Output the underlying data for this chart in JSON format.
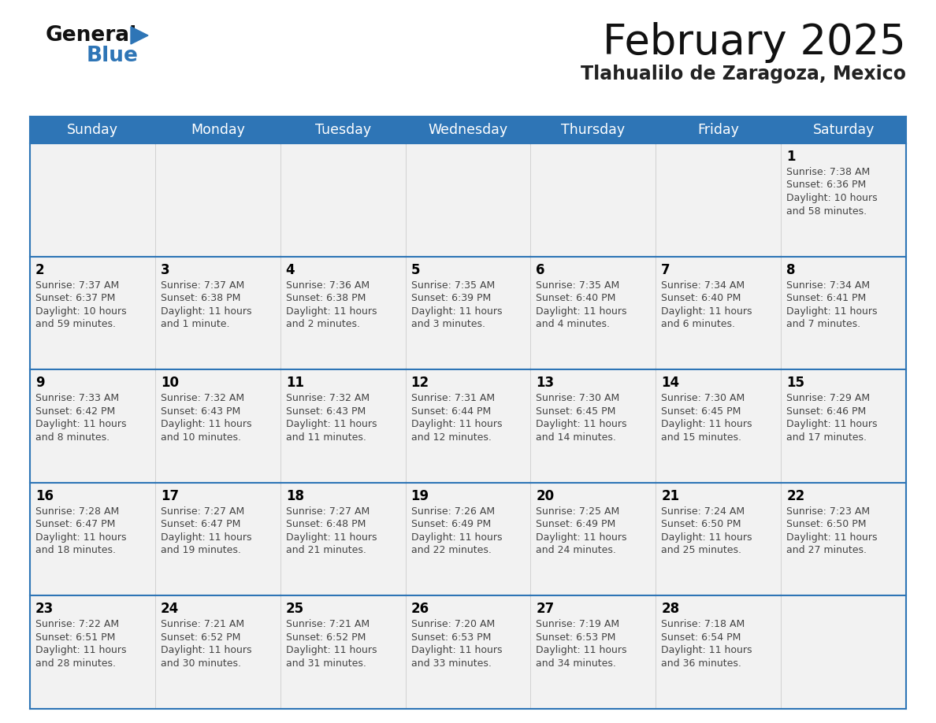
{
  "title": "February 2025",
  "subtitle": "Tlahualilo de Zaragoza, Mexico",
  "header_bg": "#2e75b6",
  "header_text": "#ffffff",
  "day_names": [
    "Sunday",
    "Monday",
    "Tuesday",
    "Wednesday",
    "Thursday",
    "Friday",
    "Saturday"
  ],
  "cell_bg": "#f2f2f2",
  "cell_border_color": "#2e75b6",
  "cell_inner_border": "#cccccc",
  "day_num_color": "#000000",
  "info_color": "#444444",
  "calendar": [
    [
      {
        "day": null,
        "sunrise": null,
        "sunset": null,
        "daylight": ""
      },
      {
        "day": null,
        "sunrise": null,
        "sunset": null,
        "daylight": ""
      },
      {
        "day": null,
        "sunrise": null,
        "sunset": null,
        "daylight": ""
      },
      {
        "day": null,
        "sunrise": null,
        "sunset": null,
        "daylight": ""
      },
      {
        "day": null,
        "sunrise": null,
        "sunset": null,
        "daylight": ""
      },
      {
        "day": null,
        "sunrise": null,
        "sunset": null,
        "daylight": ""
      },
      {
        "day": 1,
        "sunrise": "7:38 AM",
        "sunset": "6:36 PM",
        "daylight": "10 hours and 58 minutes."
      }
    ],
    [
      {
        "day": 2,
        "sunrise": "7:37 AM",
        "sunset": "6:37 PM",
        "daylight": "10 hours and 59 minutes."
      },
      {
        "day": 3,
        "sunrise": "7:37 AM",
        "sunset": "6:38 PM",
        "daylight": "11 hours and 1 minute."
      },
      {
        "day": 4,
        "sunrise": "7:36 AM",
        "sunset": "6:38 PM",
        "daylight": "11 hours and 2 minutes."
      },
      {
        "day": 5,
        "sunrise": "7:35 AM",
        "sunset": "6:39 PM",
        "daylight": "11 hours and 3 minutes."
      },
      {
        "day": 6,
        "sunrise": "7:35 AM",
        "sunset": "6:40 PM",
        "daylight": "11 hours and 4 minutes."
      },
      {
        "day": 7,
        "sunrise": "7:34 AM",
        "sunset": "6:40 PM",
        "daylight": "11 hours and 6 minutes."
      },
      {
        "day": 8,
        "sunrise": "7:34 AM",
        "sunset": "6:41 PM",
        "daylight": "11 hours and 7 minutes."
      }
    ],
    [
      {
        "day": 9,
        "sunrise": "7:33 AM",
        "sunset": "6:42 PM",
        "daylight": "11 hours and 8 minutes."
      },
      {
        "day": 10,
        "sunrise": "7:32 AM",
        "sunset": "6:43 PM",
        "daylight": "11 hours and 10 minutes."
      },
      {
        "day": 11,
        "sunrise": "7:32 AM",
        "sunset": "6:43 PM",
        "daylight": "11 hours and 11 minutes."
      },
      {
        "day": 12,
        "sunrise": "7:31 AM",
        "sunset": "6:44 PM",
        "daylight": "11 hours and 12 minutes."
      },
      {
        "day": 13,
        "sunrise": "7:30 AM",
        "sunset": "6:45 PM",
        "daylight": "11 hours and 14 minutes."
      },
      {
        "day": 14,
        "sunrise": "7:30 AM",
        "sunset": "6:45 PM",
        "daylight": "11 hours and 15 minutes."
      },
      {
        "day": 15,
        "sunrise": "7:29 AM",
        "sunset": "6:46 PM",
        "daylight": "11 hours and 17 minutes."
      }
    ],
    [
      {
        "day": 16,
        "sunrise": "7:28 AM",
        "sunset": "6:47 PM",
        "daylight": "11 hours and 18 minutes."
      },
      {
        "day": 17,
        "sunrise": "7:27 AM",
        "sunset": "6:47 PM",
        "daylight": "11 hours and 19 minutes."
      },
      {
        "day": 18,
        "sunrise": "7:27 AM",
        "sunset": "6:48 PM",
        "daylight": "11 hours and 21 minutes."
      },
      {
        "day": 19,
        "sunrise": "7:26 AM",
        "sunset": "6:49 PM",
        "daylight": "11 hours and 22 minutes."
      },
      {
        "day": 20,
        "sunrise": "7:25 AM",
        "sunset": "6:49 PM",
        "daylight": "11 hours and 24 minutes."
      },
      {
        "day": 21,
        "sunrise": "7:24 AM",
        "sunset": "6:50 PM",
        "daylight": "11 hours and 25 minutes."
      },
      {
        "day": 22,
        "sunrise": "7:23 AM",
        "sunset": "6:50 PM",
        "daylight": "11 hours and 27 minutes."
      }
    ],
    [
      {
        "day": 23,
        "sunrise": "7:22 AM",
        "sunset": "6:51 PM",
        "daylight": "11 hours and 28 minutes."
      },
      {
        "day": 24,
        "sunrise": "7:21 AM",
        "sunset": "6:52 PM",
        "daylight": "11 hours and 30 minutes."
      },
      {
        "day": 25,
        "sunrise": "7:21 AM",
        "sunset": "6:52 PM",
        "daylight": "11 hours and 31 minutes."
      },
      {
        "day": 26,
        "sunrise": "7:20 AM",
        "sunset": "6:53 PM",
        "daylight": "11 hours and 33 minutes."
      },
      {
        "day": 27,
        "sunrise": "7:19 AM",
        "sunset": "6:53 PM",
        "daylight": "11 hours and 34 minutes."
      },
      {
        "day": 28,
        "sunrise": "7:18 AM",
        "sunset": "6:54 PM",
        "daylight": "11 hours and 36 minutes."
      },
      {
        "day": null,
        "sunrise": null,
        "sunset": null,
        "daylight": ""
      }
    ]
  ]
}
